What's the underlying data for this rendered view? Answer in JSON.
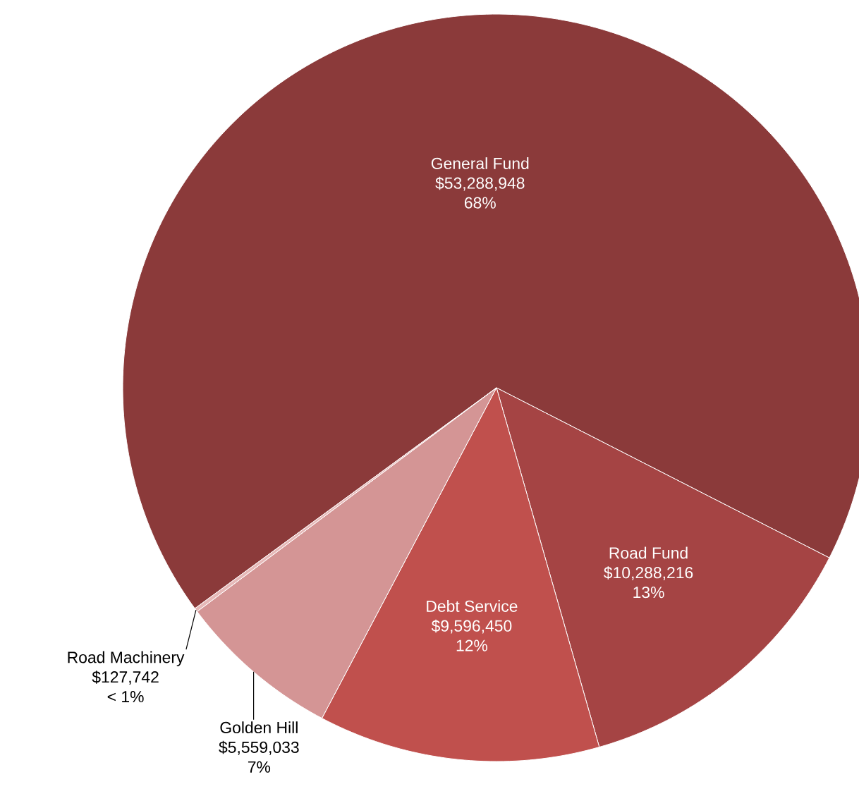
{
  "chart_data": {
    "type": "pie",
    "categories": [
      "General Fund",
      "Road Fund",
      "Debt Service",
      "Golden Hill",
      "Road Machinery"
    ],
    "values": [
      53288948,
      10288216,
      9596450,
      5559033,
      127742
    ],
    "value_labels": [
      "$53,288,948",
      "$10,288,216",
      "$9,596,450",
      "$5,559,033",
      "$127,742"
    ],
    "annotations": [
      "68%",
      "13%",
      "12%",
      "7%",
      "< 1%"
    ],
    "colors": [
      "#8b3a3a",
      "#a54444",
      "#c0504d",
      "#d49595",
      "#e6b9b8"
    ]
  }
}
